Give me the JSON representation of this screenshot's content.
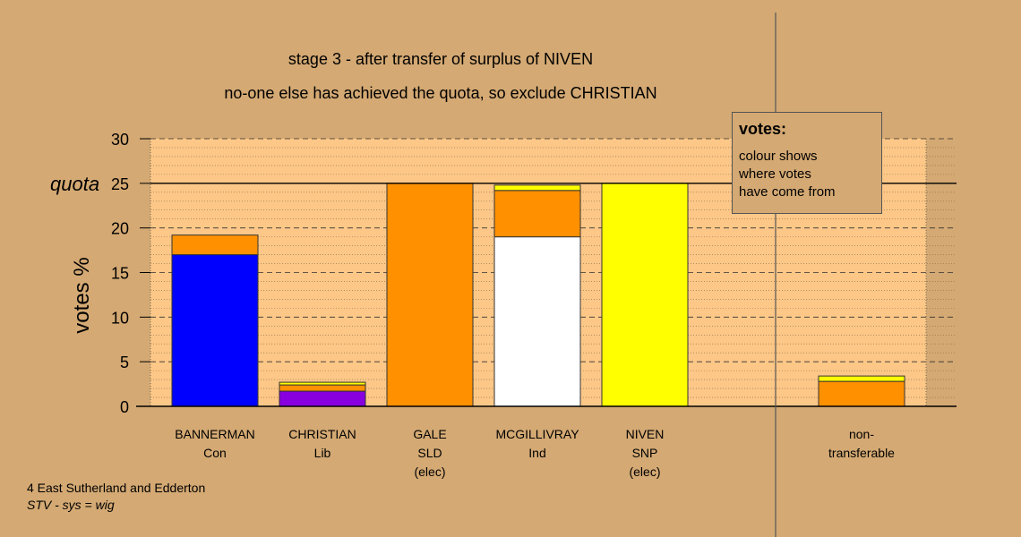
{
  "chart_data": {
    "type": "bar",
    "stacked": true,
    "title_lines": [
      "stage 3 - after transfer of surplus of NIVEN",
      "no-one else has achieved the quota, so exclude CHRISTIAN"
    ],
    "ylabel": "votes %",
    "ylim": [
      0,
      30
    ],
    "yticks": [
      "0",
      "5",
      "10",
      "15",
      "20",
      "25",
      "30"
    ],
    "quota": 25,
    "quota_label": "quota",
    "grid": true,
    "categories": [
      {
        "lines": [
          "BANNERMAN",
          "Con"
        ],
        "segments": [
          {
            "value": 17.0,
            "color": "#0000ff"
          },
          {
            "value": 2.2,
            "color": "#ff9000"
          }
        ]
      },
      {
        "lines": [
          "CHRISTIAN",
          "Lib"
        ],
        "segments": [
          {
            "value": 1.7,
            "color": "#8800e0"
          },
          {
            "value": 0.7,
            "color": "#ff9000"
          },
          {
            "value": 0.3,
            "color": "#ffff00"
          }
        ]
      },
      {
        "lines": [
          "GALE",
          "SLD",
          "(elec)"
        ],
        "segments": [
          {
            "value": 25.0,
            "color": "#ff9000"
          }
        ]
      },
      {
        "lines": [
          "MCGILLIVRAY",
          "Ind"
        ],
        "segments": [
          {
            "value": 19.0,
            "color": "#ffffff"
          },
          {
            "value": 5.2,
            "color": "#ff9000"
          },
          {
            "value": 0.6,
            "color": "#ffff00"
          }
        ]
      },
      {
        "lines": [
          "NIVEN",
          "SNP",
          "(elec)"
        ],
        "segments": [
          {
            "value": 25.0,
            "color": "#ffff00"
          }
        ]
      },
      {
        "lines": [
          "non-",
          "transferable"
        ],
        "segments": [
          {
            "value": 2.8,
            "color": "#ff9000"
          },
          {
            "value": 0.6,
            "color": "#ffff00"
          }
        ]
      }
    ]
  },
  "legend": {
    "title": "votes:",
    "lines": [
      "colour shows",
      "where votes",
      "have come from"
    ]
  },
  "footer": {
    "line1": "4 East Sutherland and Edderton",
    "line2": "STV - sys = wig"
  }
}
